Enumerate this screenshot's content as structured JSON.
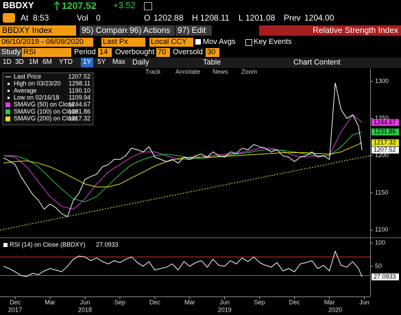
{
  "header": {
    "ticker": "BBDXY",
    "last": "1207.52",
    "change": "+3.52",
    "time_label": "At",
    "time": "8:53",
    "vol_label": "Vol",
    "vol": "0",
    "open_label": "O",
    "open": "1202.88",
    "high_label": "H",
    "high": "1208.11",
    "low_label": "L",
    "low": "1201.08",
    "prev_label": "Prev",
    "prev": "1204.00"
  },
  "toolbar": {
    "security": "BBDXY Index",
    "buttons": [
      "95) Compare",
      "96) Actions",
      "97) Edit"
    ],
    "study_title": "Relative Strength Index"
  },
  "settings": {
    "range": "06/10/2019 - 06/09/2020",
    "px": "Last Px",
    "ccy": "Local CCY",
    "mov_avgs": "Mov Avgs",
    "key_events": "Key Events"
  },
  "study": {
    "study_label": "Study",
    "study": "RSI",
    "period_label": "Period",
    "period": 14,
    "overbought_label": "Overbought",
    "overbought": 70,
    "oversold_label": "Oversold",
    "oversold": 30
  },
  "periods": [
    "1D",
    "3D",
    "1M",
    "6M",
    "YTD",
    "1Y",
    "5Y",
    "Max"
  ],
  "frequency": "Daily",
  "table": "Table",
  "chart_content": "Chart Content",
  "tools": [
    "Track",
    "Annotate",
    "News",
    "Zoom"
  ],
  "stats": [
    {
      "label": "High on 03/23/20",
      "value": "1298.11"
    },
    {
      "label": "Average",
      "value": "1190.10"
    },
    {
      "label": "Low on 02/16/18",
      "value": "1109.94"
    }
  ],
  "chart_data": [
    {
      "type": "line",
      "xlim": [
        -1.3,
        30.5
      ],
      "ylim": [
        1091,
        1317
      ],
      "yticks": [
        1100,
        1150,
        1200,
        1250,
        1300
      ],
      "trendline": {
        "color": "#9acd32",
        "x": [
          -1.3,
          30.5
        ],
        "values": [
          1100,
          1200
        ]
      },
      "series": [
        {
          "name": "Last Price",
          "color": "#ffffff",
          "x": [
            -1,
            -0.5,
            0,
            0.5,
            1,
            1.5,
            2,
            2.5,
            3,
            3.5,
            4,
            4.5,
            5,
            5.5,
            6,
            6.5,
            7,
            7.5,
            8,
            8.5,
            9,
            9.5,
            10,
            10.5,
            11,
            11.5,
            12,
            12.5,
            13,
            13.5,
            14,
            14.5,
            15,
            15.5,
            16,
            16.5,
            17,
            17.5,
            18,
            18.5,
            19,
            19.5,
            20,
            20.5,
            21,
            21.5,
            22,
            22.5,
            23,
            23.5,
            24,
            24.5,
            25,
            25.5,
            26,
            26.5,
            27,
            27.5,
            28,
            28.5,
            29,
            29.5,
            29.8
          ],
          "values": [
            1197,
            1193,
            1188,
            1172,
            1160,
            1148,
            1140,
            1128,
            1135,
            1130,
            1122,
            1118,
            1140,
            1150,
            1168,
            1172,
            1175,
            1185,
            1188,
            1195,
            1195,
            1200,
            1210,
            1208,
            1205,
            1212,
            1198,
            1195,
            1192,
            1195,
            1190,
            1198,
            1195,
            1200,
            1202,
            1198,
            1205,
            1200,
            1198,
            1205,
            1203,
            1210,
            1208,
            1215,
            1212,
            1210,
            1205,
            1208,
            1200,
            1198,
            1192,
            1198,
            1200,
            1205,
            1198,
            1200,
            1195,
            1298,
            1262,
            1250,
            1255,
            1240,
            1207.52
          ]
        },
        {
          "name": "SMAVG (50) on Close",
          "color": "#e23ee0",
          "x": [
            -1,
            0,
            1,
            2,
            3,
            4,
            5,
            6,
            7,
            8,
            9,
            10,
            11,
            12,
            13,
            14,
            15,
            16,
            17,
            18,
            19,
            20,
            21,
            22,
            23,
            24,
            25,
            26,
            27,
            28,
            29,
            29.8
          ],
          "values": [
            1200,
            1198,
            1185,
            1165,
            1145,
            1132,
            1128,
            1142,
            1162,
            1178,
            1188,
            1198,
            1205,
            1205,
            1200,
            1195,
            1195,
            1198,
            1200,
            1202,
            1203,
            1206,
            1210,
            1210,
            1206,
            1200,
            1198,
            1200,
            1200,
            1232,
            1255,
            1244.67
          ]
        },
        {
          "name": "SMAVG (100) on Close",
          "color": "#2ec84a",
          "x": [
            -1,
            0,
            1,
            2,
            3,
            4,
            5,
            6,
            7,
            8,
            9,
            10,
            11,
            12,
            13,
            14,
            15,
            16,
            17,
            18,
            19,
            20,
            21,
            22,
            23,
            24,
            25,
            26,
            27,
            28,
            29,
            29.8
          ],
          "values": [
            1200,
            1200,
            1195,
            1185,
            1170,
            1155,
            1142,
            1138,
            1145,
            1160,
            1175,
            1188,
            1195,
            1200,
            1202,
            1200,
            1197,
            1196,
            1198,
            1200,
            1202,
            1204,
            1207,
            1208,
            1207,
            1205,
            1202,
            1200,
            1200,
            1212,
            1228,
            1231.86
          ]
        },
        {
          "name": "SMAVG (200) on Close",
          "color": "#e6e61a",
          "x": [
            -1,
            0,
            1,
            2,
            3,
            4,
            5,
            6,
            7,
            8,
            9,
            10,
            11,
            12,
            13,
            14,
            15,
            16,
            17,
            18,
            19,
            20,
            21,
            22,
            23,
            24,
            25,
            26,
            27,
            28,
            29,
            29.8
          ],
          "values": [
            1190,
            1192,
            1193,
            1190,
            1185,
            1178,
            1170,
            1162,
            1158,
            1158,
            1162,
            1170,
            1178,
            1186,
            1192,
            1196,
            1198,
            1198,
            1198,
            1199,
            1200,
            1201,
            1202,
            1203,
            1204,
            1204,
            1204,
            1203,
            1202,
            1205,
            1212,
            1217.32
          ]
        }
      ]
    },
    {
      "type": "line",
      "xlim": [
        -1.3,
        30.5
      ],
      "ylim": [
        -15,
        109
      ],
      "yticks": [
        50,
        100
      ],
      "overbought_color": "#d0312d",
      "oversold_color": "#2e9e3e",
      "xticks": [
        {
          "value": 0,
          "label": "Dec"
        },
        {
          "value": 3,
          "label": "Mar"
        },
        {
          "value": 6,
          "label": "Jun"
        },
        {
          "value": 9,
          "label": "Sep"
        },
        {
          "value": 12,
          "label": "Dec"
        },
        {
          "value": 15,
          "label": "Mar"
        },
        {
          "value": 18,
          "label": "Jun"
        },
        {
          "value": 21,
          "label": "Sep"
        },
        {
          "value": 24,
          "label": "Dec"
        },
        {
          "value": 27,
          "label": "Mar"
        },
        {
          "value": 30,
          "label": "Jun"
        }
      ],
      "year_labels": [
        {
          "value": 0,
          "label": "2017"
        },
        {
          "value": 6,
          "label": "2018"
        },
        {
          "value": 18,
          "label": "2019"
        },
        {
          "value": 27.5,
          "label": "2020"
        }
      ],
      "series": [
        {
          "name": "RSI (14) on Close (BBDXY)",
          "color": "#ffffff",
          "x": [
            -1,
            -0.5,
            0,
            0.5,
            1,
            1.5,
            2,
            2.5,
            3,
            3.5,
            4,
            4.5,
            5,
            5.5,
            6,
            6.5,
            7,
            7.5,
            8,
            8.5,
            9,
            9.5,
            10,
            10.5,
            11,
            11.5,
            12,
            12.5,
            13,
            13.5,
            14,
            14.5,
            15,
            15.5,
            16,
            16.5,
            17,
            17.5,
            18,
            18.5,
            19,
            19.5,
            20,
            20.5,
            21,
            21.5,
            22,
            22.5,
            23,
            23.5,
            24,
            24.5,
            25,
            25.5,
            26,
            26.5,
            27,
            27.5,
            28,
            28.5,
            29,
            29.5,
            29.8
          ],
          "values": [
            50,
            45,
            38,
            30,
            28,
            35,
            32,
            40,
            45,
            42,
            38,
            50,
            65,
            72,
            70,
            62,
            68,
            60,
            55,
            62,
            58,
            65,
            70,
            58,
            50,
            60,
            42,
            45,
            48,
            55,
            42,
            60,
            50,
            58,
            62,
            48,
            65,
            52,
            50,
            62,
            55,
            68,
            60,
            70,
            58,
            52,
            48,
            58,
            40,
            45,
            38,
            55,
            58,
            62,
            45,
            52,
            40,
            82,
            52,
            48,
            60,
            45,
            27.0933
          ]
        }
      ]
    }
  ]
}
